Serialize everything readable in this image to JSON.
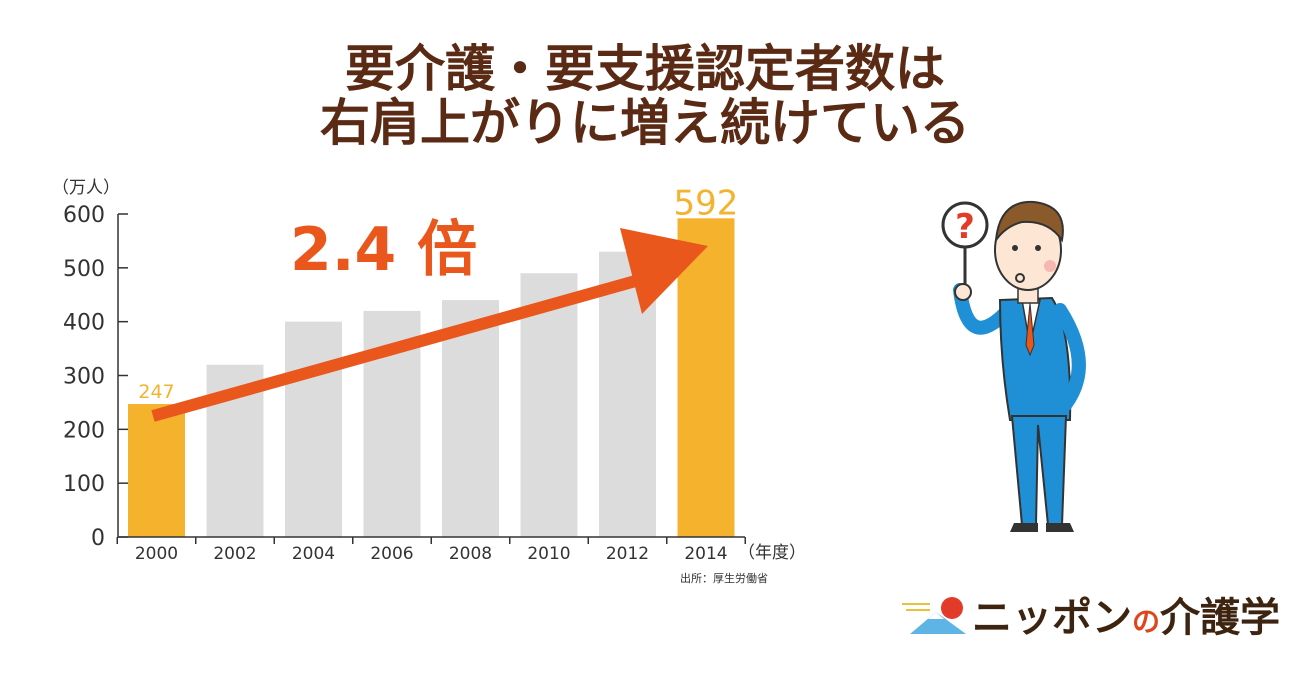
{
  "header": {
    "title_line1": "要介護・要支援認定者数は",
    "title_line2": "右肩上がりに増え続けている"
  },
  "chart_data": {
    "type": "bar",
    "categories": [
      "2000",
      "2002",
      "2004",
      "2006",
      "2008",
      "2010",
      "2012",
      "2014"
    ],
    "values": [
      247,
      320,
      400,
      420,
      440,
      490,
      530,
      592
    ],
    "highlight": [
      "2000",
      "2014"
    ],
    "value_labels": {
      "2000": "247",
      "2014": "592"
    },
    "ylabel": "（万人）",
    "xlabel": "（年度）",
    "ylim": [
      0,
      600
    ],
    "yticks": [
      0,
      100,
      200,
      300,
      400,
      500,
      600
    ],
    "annotation": "2.4 倍",
    "source": "出所：厚生労働省",
    "grid": false,
    "colors": {
      "highlight": "#f5b22c",
      "normal": "#dcdcdc",
      "arrow": "#e9571c",
      "axis": "#333333"
    }
  },
  "brand": {
    "name_part1": "ニッポン",
    "name_no": "の",
    "name_part2": "介護学"
  },
  "illustration": {
    "sign_text": "?"
  }
}
